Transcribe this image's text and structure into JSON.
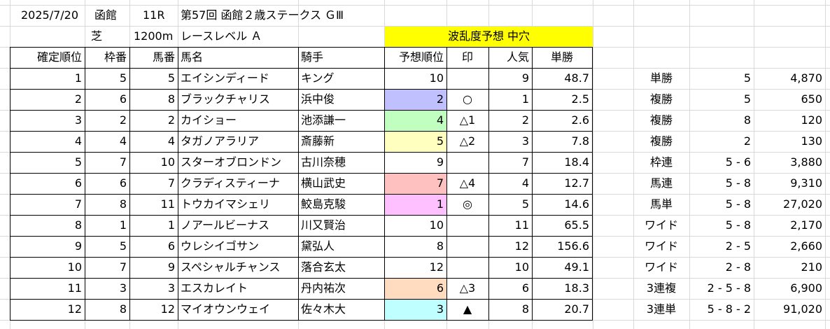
{
  "header": {
    "date": "2025/7/20",
    "venue": "函館",
    "race_no": "11R",
    "race_name": "第57回 函館２歳ステークス ＧⅢ",
    "surface": "芝",
    "distance": "1200m",
    "race_level": "レースレベル Ａ",
    "forecast_banner": "波乱度予想 中穴"
  },
  "colors": {
    "banner": "#ffff00",
    "rank_fill_2": "#c0c0ff",
    "rank_fill_4": "#c0ffc0",
    "rank_fill_5": "#ffffc0",
    "rank_fill_7": "#ffc0c0",
    "rank_fill_1": "#ffc0ff",
    "rank_fill_6": "#ffdcc0",
    "rank_fill_3": "#c0ffff"
  },
  "columns": [
    "確定順位",
    "枠番",
    "馬番",
    "馬名",
    "騎手",
    "予想順位",
    "印",
    "人気",
    "単勝"
  ],
  "rows": [
    {
      "finish": "1",
      "waku": "5",
      "uma": "5",
      "horse": "エイシンディード",
      "jockey": "キング",
      "pred": "10",
      "mark": "",
      "pop": "9",
      "odds": "48.7",
      "fill": ""
    },
    {
      "finish": "2",
      "waku": "6",
      "uma": "8",
      "horse": "ブラックチャリス",
      "jockey": "浜中俊",
      "pred": "2",
      "mark": "○",
      "pop": "1",
      "odds": "2.5",
      "fill": "#c0c0ff"
    },
    {
      "finish": "3",
      "waku": "2",
      "uma": "2",
      "horse": "カイショー",
      "jockey": "池添謙一",
      "pred": "4",
      "mark": "△1",
      "pop": "2",
      "odds": "2.6",
      "fill": "#c0ffc0"
    },
    {
      "finish": "4",
      "waku": "4",
      "uma": "4",
      "horse": "タガノアラリア",
      "jockey": "斎藤新",
      "pred": "5",
      "mark": "△2",
      "pop": "3",
      "odds": "7.8",
      "fill": "#ffffc0"
    },
    {
      "finish": "5",
      "waku": "7",
      "uma": "10",
      "horse": "スターオブロンドン",
      "jockey": "古川奈穂",
      "pred": "9",
      "mark": "",
      "pop": "7",
      "odds": "18.4",
      "fill": ""
    },
    {
      "finish": "6",
      "waku": "6",
      "uma": "7",
      "horse": "クラディスティーナ",
      "jockey": "横山武史",
      "pred": "7",
      "mark": "△4",
      "pop": "4",
      "odds": "12.7",
      "fill": "#ffc0c0"
    },
    {
      "finish": "7",
      "waku": "8",
      "uma": "11",
      "horse": "トウカイマシェリ",
      "jockey": "鮫島克駿",
      "pred": "1",
      "mark": "◎",
      "pop": "5",
      "odds": "14.6",
      "fill": "#ffc0ff"
    },
    {
      "finish": "8",
      "waku": "1",
      "uma": "1",
      "horse": "ノアールビーナス",
      "jockey": "川又賢治",
      "pred": "10",
      "mark": "",
      "pop": "11",
      "odds": "65.5",
      "fill": ""
    },
    {
      "finish": "9",
      "waku": "5",
      "uma": "6",
      "horse": "ウレシイゴサン",
      "jockey": "黛弘人",
      "pred": "8",
      "mark": "",
      "pop": "12",
      "odds": "156.6",
      "fill": ""
    },
    {
      "finish": "10",
      "waku": "7",
      "uma": "9",
      "horse": "スペシャルチャンス",
      "jockey": "落合玄太",
      "pred": "12",
      "mark": "",
      "pop": "10",
      "odds": "49.1",
      "fill": ""
    },
    {
      "finish": "11",
      "waku": "3",
      "uma": "3",
      "horse": "エスカレイト",
      "jockey": "丹内祐次",
      "pred": "6",
      "mark": "△3",
      "pop": "6",
      "odds": "18.3",
      "fill": "#ffdcc0"
    },
    {
      "finish": "12",
      "waku": "8",
      "uma": "12",
      "horse": "マイオウンウェイ",
      "jockey": "佐々木大",
      "pred": "3",
      "mark": "▲",
      "pop": "8",
      "odds": "20.7",
      "fill": "#c0ffff"
    }
  ],
  "payouts": [
    {
      "type": "単勝",
      "combo": "5",
      "amount": "4,870"
    },
    {
      "type": "複勝",
      "combo": "5",
      "amount": "650"
    },
    {
      "type": "複勝",
      "combo": "8",
      "amount": "120"
    },
    {
      "type": "複勝",
      "combo": "2",
      "amount": "130"
    },
    {
      "type": "枠連",
      "combo": "5 - 6",
      "amount": "3,880"
    },
    {
      "type": "馬連",
      "combo": "5 - 8",
      "amount": "9,310"
    },
    {
      "type": "馬単",
      "combo": "5 - 8",
      "amount": "27,020"
    },
    {
      "type": "ワイド",
      "combo": "5 - 8",
      "amount": "2,170"
    },
    {
      "type": "ワイド",
      "combo": "2 - 5",
      "amount": "2,660"
    },
    {
      "type": "ワイド",
      "combo": "2 - 8",
      "amount": "210"
    },
    {
      "type": "3連複",
      "combo": "2 - 5 - 8",
      "amount": "6,900"
    },
    {
      "type": "3連単",
      "combo": "5 - 8 - 2",
      "amount": "91,020"
    }
  ]
}
